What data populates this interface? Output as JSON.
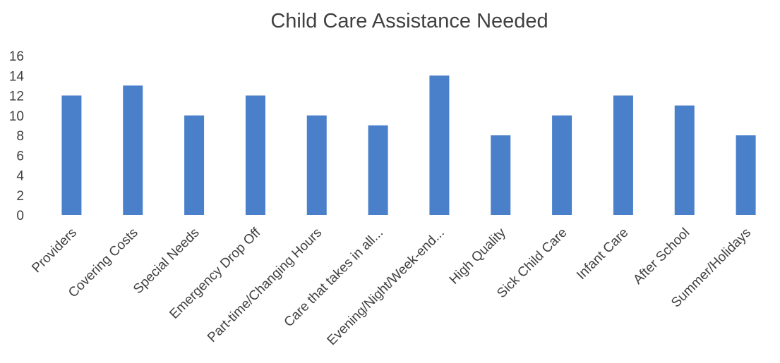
{
  "chart_data": {
    "type": "bar",
    "title": "Child Care Assistance Needed",
    "categories": [
      "Providers",
      "Covering Costs",
      "Special Needs",
      "Emergency Drop Off",
      "Part-time/Changing Hours",
      "Care that takes in all...",
      "Evening/Night/Week-end...",
      "High Quality",
      "Sick Child Care",
      "Infant Care",
      "After School",
      "Summer/Holidays"
    ],
    "values": [
      12,
      13,
      10,
      12,
      10,
      9,
      14,
      8,
      10,
      12,
      11,
      8
    ],
    "yticks": [
      "0",
      "2",
      "4",
      "6",
      "8",
      "10",
      "12",
      "14",
      "16"
    ],
    "ylim": [
      0,
      16
    ],
    "grid": false,
    "legend": "none",
    "colors": {
      "bar": "#4a7fc9",
      "text": "#404040"
    }
  }
}
